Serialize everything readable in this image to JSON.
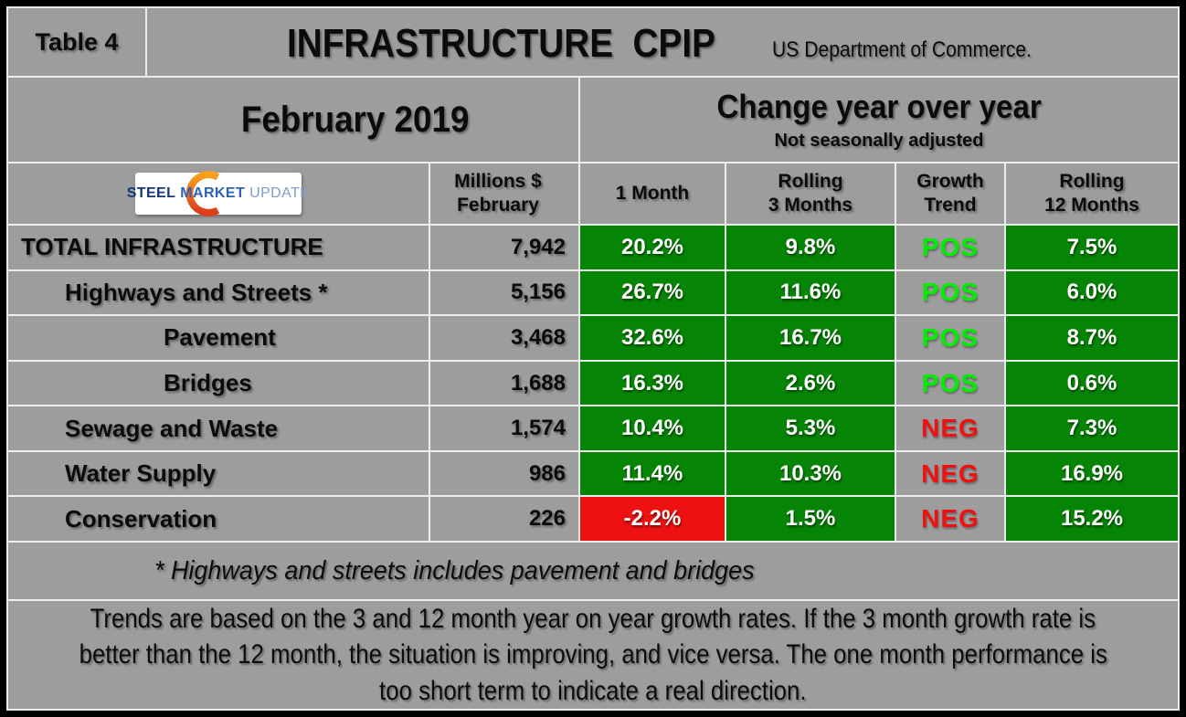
{
  "header": {
    "table_label": "Table 4",
    "title": "INFRASTRUCTURE  CPIP",
    "source": "US Department of Commerce.",
    "period": "February 2019",
    "change_title": "Change year over year",
    "change_subtitle": "Not seasonally adjusted"
  },
  "logo": {
    "steel": "STEEL",
    "market": "MARKET",
    "update": "UPDATE"
  },
  "columns": {
    "millions_line1": "Millions $",
    "millions_line2": "February",
    "one_month": "1 Month",
    "rolling3_line1": "Rolling",
    "rolling3_line2": "3 Months",
    "growth_line1": "Growth",
    "growth_line2": "Trend",
    "rolling12_line1": "Rolling",
    "rolling12_line2": "12 Months"
  },
  "rows": [
    {
      "label": "TOTAL INFRASTRUCTURE",
      "indent": 0,
      "millions": "7,942",
      "one_month": "20.2%",
      "one_month_bg": "green",
      "rolling_3": "9.8%",
      "rolling_3_bg": "green",
      "trend": "POS",
      "trend_dir": "pos",
      "rolling_12": "7.5%",
      "rolling_12_bg": "green"
    },
    {
      "label": "Highways and Streets *",
      "indent": 1,
      "millions": "5,156",
      "one_month": "26.7%",
      "one_month_bg": "green",
      "rolling_3": "11.6%",
      "rolling_3_bg": "green",
      "trend": "POS",
      "trend_dir": "pos",
      "rolling_12": "6.0%",
      "rolling_12_bg": "green"
    },
    {
      "label": "Pavement",
      "indent": 2,
      "millions": "3,468",
      "one_month": "32.6%",
      "one_month_bg": "green",
      "rolling_3": "16.7%",
      "rolling_3_bg": "green",
      "trend": "POS",
      "trend_dir": "pos",
      "rolling_12": "8.7%",
      "rolling_12_bg": "green"
    },
    {
      "label": "Bridges",
      "indent": 2,
      "millions": "1,688",
      "one_month": "16.3%",
      "one_month_bg": "green",
      "rolling_3": "2.6%",
      "rolling_3_bg": "green",
      "trend": "POS",
      "trend_dir": "pos",
      "rolling_12": "0.6%",
      "rolling_12_bg": "green"
    },
    {
      "label": "Sewage and Waste",
      "indent": 1,
      "millions": "1,574",
      "one_month": "10.4%",
      "one_month_bg": "green",
      "rolling_3": "5.3%",
      "rolling_3_bg": "green",
      "trend": "NEG",
      "trend_dir": "neg",
      "rolling_12": "7.3%",
      "rolling_12_bg": "green"
    },
    {
      "label": "Water Supply",
      "indent": 1,
      "millions": "986",
      "one_month": "11.4%",
      "one_month_bg": "green",
      "rolling_3": "10.3%",
      "rolling_3_bg": "green",
      "trend": "NEG",
      "trend_dir": "neg",
      "rolling_12": "16.9%",
      "rolling_12_bg": "green"
    },
    {
      "label": "Conservation",
      "indent": 1,
      "millions": "226",
      "one_month": "-2.2%",
      "one_month_bg": "red",
      "rolling_3": "1.5%",
      "rolling_3_bg": "green",
      "trend": "NEG",
      "trend_dir": "neg",
      "rolling_12": "15.2%",
      "rolling_12_bg": "green"
    }
  ],
  "footnote": "* Highways and streets includes pavement and bridges",
  "footer": {
    "line1": "Trends are based on the 3 and 12 month year on year growth rates. If the 3 month growth rate is",
    "line2": "better than the 12 month, the situation is improving, and vice versa. The one month performance is",
    "line3": "too short term to indicate a real direction."
  },
  "colors": {
    "cell_gray": "#9d9d9d",
    "positive_cell": "#068405",
    "negative_cell": "#ee1111",
    "trend_positive_text": "#00ee00",
    "trend_negative_text": "#f01010",
    "gridline": "#ececec",
    "frame": "#000000",
    "logo_orange_top": "#f9a11d",
    "logo_orange_bottom": "#dd3b1c"
  },
  "chart_data": {
    "type": "table",
    "title": "Table 4 — INFRASTRUCTURE CPIP (US Department of Commerce.) — February 2019 — Change year over year, Not seasonally adjusted",
    "columns": [
      "Category",
      "Millions $ February",
      "1 Month",
      "Rolling 3 Months",
      "Growth Trend",
      "Rolling 12 Months"
    ],
    "rows": [
      [
        "TOTAL INFRASTRUCTURE",
        7942,
        "20.2%",
        "9.8%",
        "POS",
        "7.5%"
      ],
      [
        "Highways and Streets *",
        5156,
        "26.7%",
        "11.6%",
        "POS",
        "6.0%"
      ],
      [
        "Pavement",
        3468,
        "32.6%",
        "16.7%",
        "POS",
        "8.7%"
      ],
      [
        "Bridges",
        1688,
        "16.3%",
        "2.6%",
        "POS",
        "0.6%"
      ],
      [
        "Sewage and Waste",
        1574,
        "10.4%",
        "5.3%",
        "NEG",
        "7.3%"
      ],
      [
        "Water Supply",
        986,
        "11.4%",
        "10.3%",
        "NEG",
        "16.9%"
      ],
      [
        "Conservation",
        226,
        "-2.2%",
        "1.5%",
        "NEG",
        "15.2%"
      ]
    ],
    "footnote": "* Highways and streets includes pavement and bridges",
    "notes": "Trends are based on the 3 and 12 month year on year growth rates. If the 3 month growth rate is better than the 12 month, the situation is improving, and vice versa. The one month performance is too short term to indicate a real direction."
  }
}
